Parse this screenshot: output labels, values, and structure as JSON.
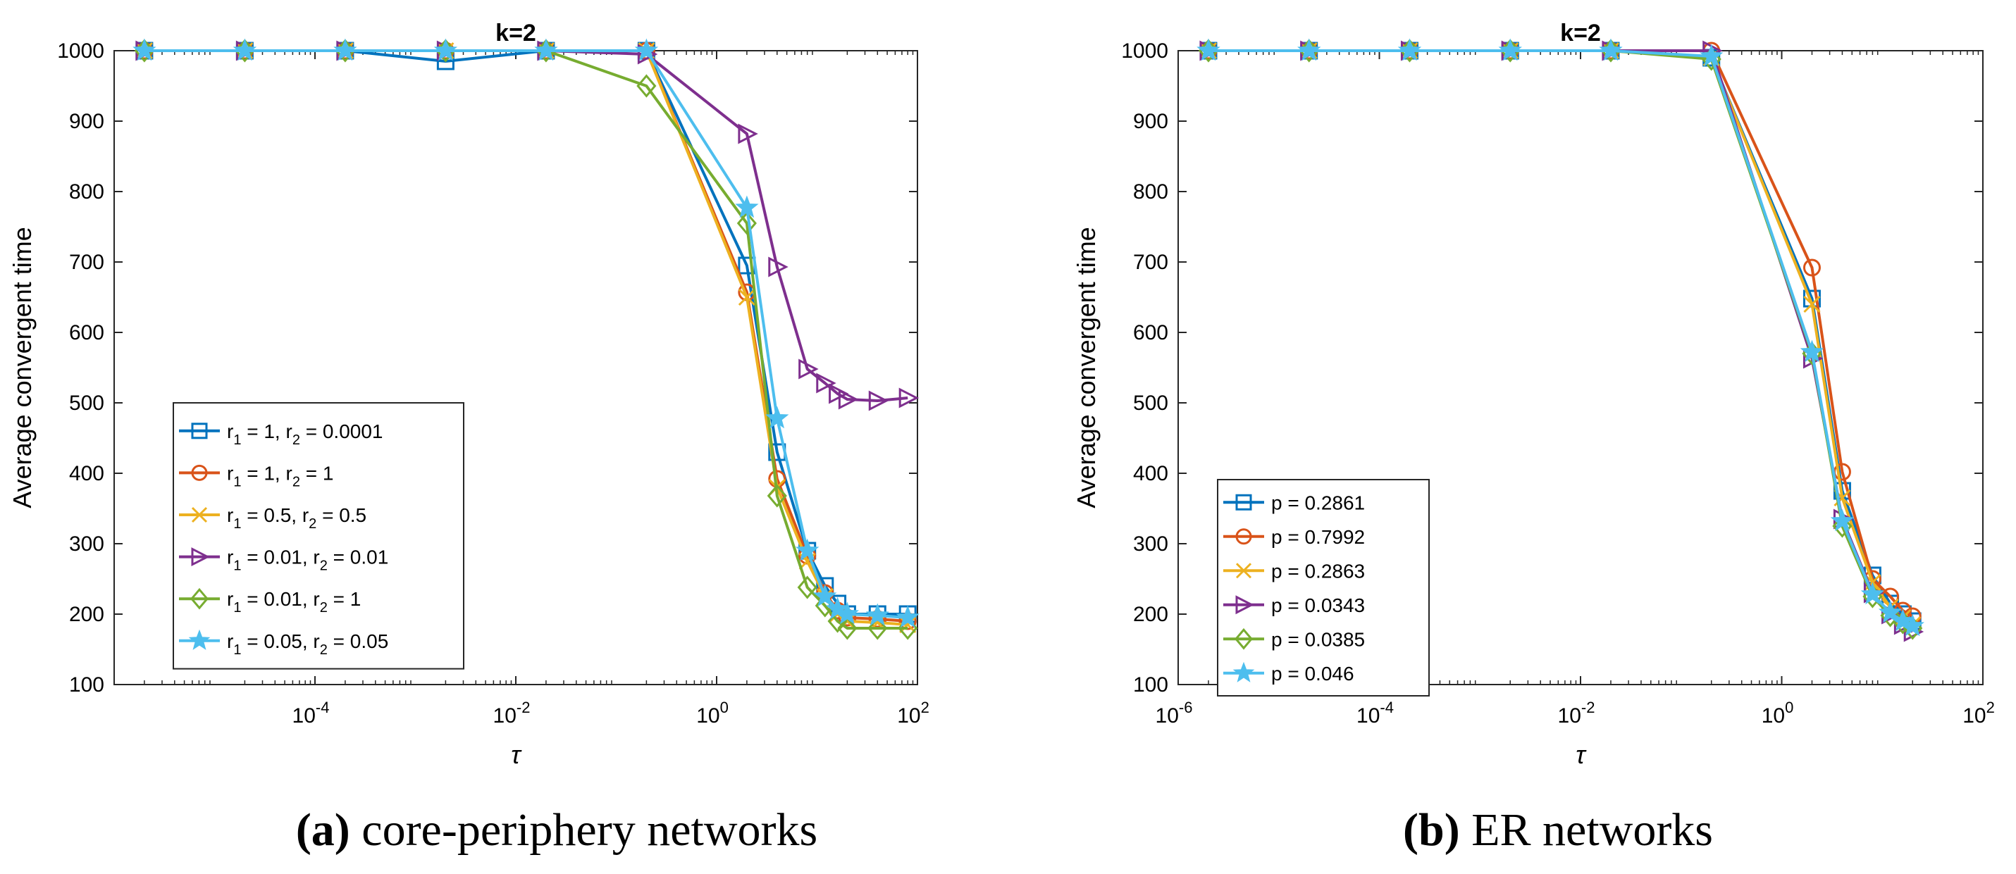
{
  "chart_data": [
    {
      "type": "line",
      "title": "k=2",
      "xlabel": "τ",
      "ylabel": "Average convergent time",
      "xscale": "log",
      "xlim": [
        1e-06,
        100
      ],
      "xticks": [
        0.0001,
        0.01,
        1,
        100
      ],
      "xtick_labels": [
        {
          "base": "10",
          "exp": "-4"
        },
        {
          "base": "10",
          "exp": "-2"
        },
        {
          "base": "10",
          "exp": "0"
        },
        {
          "base": "10",
          "exp": "2"
        }
      ],
      "ylim": [
        100,
        1000
      ],
      "yticks": [
        100,
        200,
        300,
        400,
        500,
        600,
        700,
        800,
        900,
        1000
      ],
      "grid": false,
      "legend_position": "lower-left",
      "caption": {
        "label": "(a)",
        "text": " core-periphery networks"
      },
      "series": [
        {
          "name": "r1 = 1, r2 = 0.0001",
          "legend": {
            "a": "r",
            "a_sub": "1",
            "b": " = 1, r",
            "b_sub": "2",
            "c": " = 0.0001"
          },
          "color": "#0072BD",
          "marker": "square",
          "x": [
            2e-06,
            2e-05,
            0.0002,
            0.002,
            0.02,
            0.2,
            2,
            4,
            8,
            12,
            16,
            20,
            40,
            80
          ],
          "y": [
            1000,
            1000,
            1000,
            985,
            1000,
            1000,
            695,
            430,
            290,
            240,
            215,
            200,
            200,
            200
          ]
        },
        {
          "name": "r1 = 1, r2 = 1",
          "legend": {
            "a": "r",
            "a_sub": "1",
            "b": " = 1, r",
            "b_sub": "2",
            "c": " = 1"
          },
          "color": "#D95319",
          "marker": "circle",
          "x": [
            2e-06,
            2e-05,
            0.0002,
            0.002,
            0.02,
            0.2,
            2,
            4,
            8,
            12,
            16,
            20,
            40,
            80
          ],
          "y": [
            1000,
            1000,
            1000,
            1000,
            1000,
            1000,
            657,
            392,
            283,
            230,
            205,
            195,
            193,
            190
          ]
        },
        {
          "name": "r1 = 0.5, r2 = 0.5",
          "legend": {
            "a": "r",
            "a_sub": "1",
            "b": " = 0.5, r",
            "b_sub": "2",
            "c": " = 0.5"
          },
          "color": "#EDB120",
          "marker": "x",
          "x": [
            2e-06,
            2e-05,
            0.0002,
            0.002,
            0.02,
            0.2,
            2,
            4,
            8,
            12,
            16,
            20,
            40,
            80
          ],
          "y": [
            1000,
            1000,
            1000,
            1000,
            1000,
            1000,
            650,
            380,
            275,
            225,
            200,
            190,
            188,
            185
          ]
        },
        {
          "name": "r1 = 0.01, r2 = 0.01",
          "legend": {
            "a": "r",
            "a_sub": "1",
            "b": " = 0.01, r",
            "b_sub": "2",
            "c": " = 0.01"
          },
          "color": "#7E2F8E",
          "marker": "triangle-right",
          "x": [
            2e-06,
            2e-05,
            0.0002,
            0.002,
            0.02,
            0.2,
            2,
            4,
            8,
            12,
            16,
            20,
            40,
            80
          ],
          "y": [
            1000,
            1000,
            1000,
            1000,
            1000,
            995,
            882,
            693,
            548,
            528,
            513,
            505,
            503,
            507
          ]
        },
        {
          "name": "r1 = 0.01, r2 = 1",
          "legend": {
            "a": "r",
            "a_sub": "1",
            "b": " = 0.01, r",
            "b_sub": "2",
            "c": " = 1"
          },
          "color": "#77AC30",
          "marker": "diamond",
          "x": [
            2e-06,
            2e-05,
            0.0002,
            0.002,
            0.02,
            0.2,
            2,
            4,
            8,
            12,
            16,
            20,
            40,
            80
          ],
          "y": [
            1000,
            1000,
            1000,
            1000,
            1000,
            950,
            755,
            368,
            238,
            212,
            190,
            180,
            180,
            180
          ]
        },
        {
          "name": "r1 = 0.05, r2 = 0.05",
          "legend": {
            "a": "r",
            "a_sub": "1",
            "b": " = 0.05, r",
            "b_sub": "2",
            "c": " = 0.05"
          },
          "color": "#4DBEEE",
          "marker": "star",
          "x": [
            2e-06,
            2e-05,
            0.0002,
            0.002,
            0.02,
            0.2,
            2,
            4,
            8,
            12,
            16,
            20,
            40,
            80
          ],
          "y": [
            1000,
            1000,
            1000,
            1000,
            1000,
            1000,
            777,
            478,
            290,
            225,
            207,
            200,
            198,
            195
          ]
        }
      ]
    },
    {
      "type": "line",
      "title": "k=2",
      "xlabel": "τ",
      "ylabel": "Average convergent time",
      "xscale": "log",
      "xlim": [
        1e-06,
        100
      ],
      "xticks": [
        1e-06,
        0.0001,
        0.01,
        1,
        100
      ],
      "xtick_labels": [
        {
          "base": "10",
          "exp": "-6"
        },
        {
          "base": "10",
          "exp": "-4"
        },
        {
          "base": "10",
          "exp": "-2"
        },
        {
          "base": "10",
          "exp": "0"
        },
        {
          "base": "10",
          "exp": "2"
        }
      ],
      "ylim": [
        100,
        1000
      ],
      "yticks": [
        100,
        200,
        300,
        400,
        500,
        600,
        700,
        800,
        900,
        1000
      ],
      "grid": false,
      "legend_position": "lower-left",
      "caption": {
        "label": "(b)",
        "text": " ER networks"
      },
      "series": [
        {
          "name": "p = 0.2861",
          "legend": {
            "a": "p = 0.2861"
          },
          "color": "#0072BD",
          "marker": "square",
          "x": [
            2e-06,
            2e-05,
            0.0002,
            0.002,
            0.02,
            0.2,
            2,
            4,
            8,
            12,
            16,
            20
          ],
          "y": [
            1000,
            1000,
            1000,
            1000,
            1000,
            990,
            648,
            375,
            255,
            215,
            200,
            190
          ]
        },
        {
          "name": "p = 0.7992",
          "legend": {
            "a": "p = 0.7992"
          },
          "color": "#D95319",
          "marker": "circle",
          "x": [
            2e-06,
            2e-05,
            0.0002,
            0.002,
            0.02,
            0.2,
            2,
            4,
            8,
            12,
            16,
            20
          ],
          "y": [
            1000,
            1000,
            1000,
            1000,
            1000,
            1000,
            692,
            402,
            250,
            225,
            205,
            197
          ]
        },
        {
          "name": "p = 0.2863",
          "legend": {
            "a": "p = 0.2863"
          },
          "color": "#EDB120",
          "marker": "x",
          "x": [
            2e-06,
            2e-05,
            0.0002,
            0.002,
            0.02,
            0.2,
            2,
            4,
            8,
            12,
            16,
            20
          ],
          "y": [
            1000,
            1000,
            1000,
            1000,
            1000,
            990,
            640,
            365,
            245,
            210,
            195,
            185
          ]
        },
        {
          "name": "p = 0.0343",
          "legend": {
            "a": "p = 0.0343"
          },
          "color": "#7E2F8E",
          "marker": "triangle-right",
          "x": [
            2e-06,
            2e-05,
            0.0002,
            0.002,
            0.02,
            0.2,
            2,
            4,
            8,
            12,
            16,
            20
          ],
          "y": [
            1000,
            1000,
            1000,
            1000,
            1000,
            1000,
            563,
            335,
            230,
            200,
            185,
            175
          ]
        },
        {
          "name": "p = 0.0385",
          "legend": {
            "a": "p = 0.0385"
          },
          "color": "#77AC30",
          "marker": "diamond",
          "x": [
            2e-06,
            2e-05,
            0.0002,
            0.002,
            0.02,
            0.2,
            2,
            4,
            8,
            12,
            16,
            20
          ],
          "y": [
            1000,
            1000,
            1000,
            1000,
            1000,
            988,
            570,
            325,
            225,
            198,
            188,
            180
          ]
        },
        {
          "name": "p = 0.046",
          "legend": {
            "a": "p = 0.046"
          },
          "color": "#4DBEEE",
          "marker": "star",
          "x": [
            2e-06,
            2e-05,
            0.0002,
            0.002,
            0.02,
            0.2,
            2,
            4,
            8,
            12,
            16,
            20
          ],
          "y": [
            1000,
            1000,
            1000,
            1000,
            1000,
            992,
            572,
            332,
            228,
            202,
            190,
            183
          ]
        }
      ]
    }
  ]
}
